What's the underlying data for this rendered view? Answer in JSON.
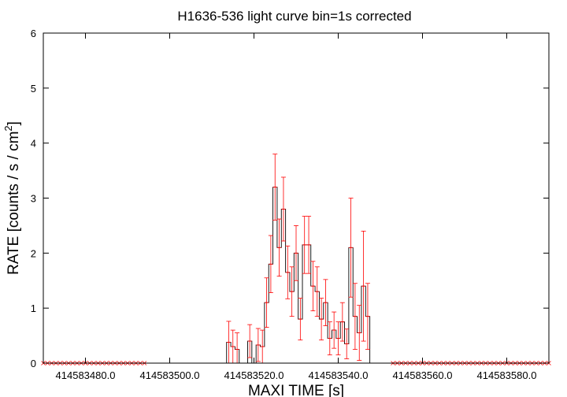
{
  "chart_data": {
    "type": "line",
    "title": "H1636-536 light curve bin=1s corrected",
    "xlabel": "MAXI TIME [s]",
    "ylabel_main": "RATE [counts / s / cm",
    "ylabel_sup": "2",
    "ylabel_tail": "]",
    "xlim": [
      414583470,
      414583590
    ],
    "ylim": [
      0,
      6
    ],
    "xticks": [
      414583480,
      414583500,
      414583520,
      414583540,
      414583560,
      414583580
    ],
    "xtick_labels": [
      "414583480.0",
      "414583500.0",
      "414583520.0",
      "414583540.0",
      "414583560.0",
      "414583580.0"
    ],
    "yticks": [
      0,
      1,
      2,
      3,
      4,
      5,
      6
    ],
    "ytick_labels": [
      "0",
      "1",
      "2",
      "3",
      "4",
      "5",
      "6"
    ],
    "grid": false,
    "bin_width": 1,
    "colors": {
      "step": "#000000",
      "error": "#ff0000",
      "axes": "#000000"
    },
    "series": [
      {
        "x": [
          414583495,
          414583496,
          414583497,
          414583498,
          414583499,
          414583500,
          414583501,
          414583502,
          414583503,
          414583504,
          414583505,
          414583506,
          414583507,
          414583508,
          414583509,
          414583510,
          414583511,
          414583512,
          414583513,
          414583514,
          414583515,
          414583516,
          414583517,
          414583518,
          414583519,
          414583520,
          414583521,
          414583522,
          414583523,
          414583524,
          414583525,
          414583526,
          414583527,
          414583528,
          414583529,
          414583530,
          414583531,
          414583532,
          414583533,
          414583534,
          414583535,
          414583536,
          414583537,
          414583538,
          414583539,
          414583540,
          414583541,
          414583542,
          414583543,
          414583544,
          414583545,
          414583546,
          414583547,
          414583548,
          414583549,
          414583550,
          414583551,
          414583552
        ],
        "y": [
          0,
          0,
          0,
          0,
          0,
          0,
          0,
          0,
          0,
          0,
          0,
          0,
          0,
          0,
          0,
          0,
          0,
          0,
          0,
          0.38,
          0.3,
          0.25,
          0,
          0,
          0.4,
          0,
          0.33,
          0.3,
          1.1,
          1.8,
          3.2,
          2.1,
          2.8,
          1.65,
          1.3,
          2.0,
          0.8,
          2.15,
          2.15,
          1.4,
          1.3,
          0.8,
          1.1,
          0.45,
          0.6,
          0.45,
          0.75,
          0.35,
          2.1,
          0.85,
          0.55,
          1.4,
          0.85,
          0,
          0,
          0,
          0,
          0
        ],
        "err": [
          0,
          0,
          0,
          0,
          0,
          0,
          0,
          0,
          0,
          0,
          0,
          0,
          0,
          0,
          0,
          0,
          0,
          0,
          0,
          0.38,
          0.3,
          0.3,
          0,
          0,
          0.3,
          0,
          0.3,
          0.3,
          0.45,
          0.52,
          0.6,
          0.52,
          0.58,
          0.48,
          0.45,
          0.5,
          0.38,
          0.52,
          0.52,
          0.45,
          0.45,
          0.38,
          0.42,
          0.3,
          0.33,
          0.3,
          0.35,
          0.27,
          0.9,
          0.6,
          0.5,
          1.0,
          0.6,
          0,
          0,
          0,
          0,
          0
        ]
      }
    ]
  }
}
